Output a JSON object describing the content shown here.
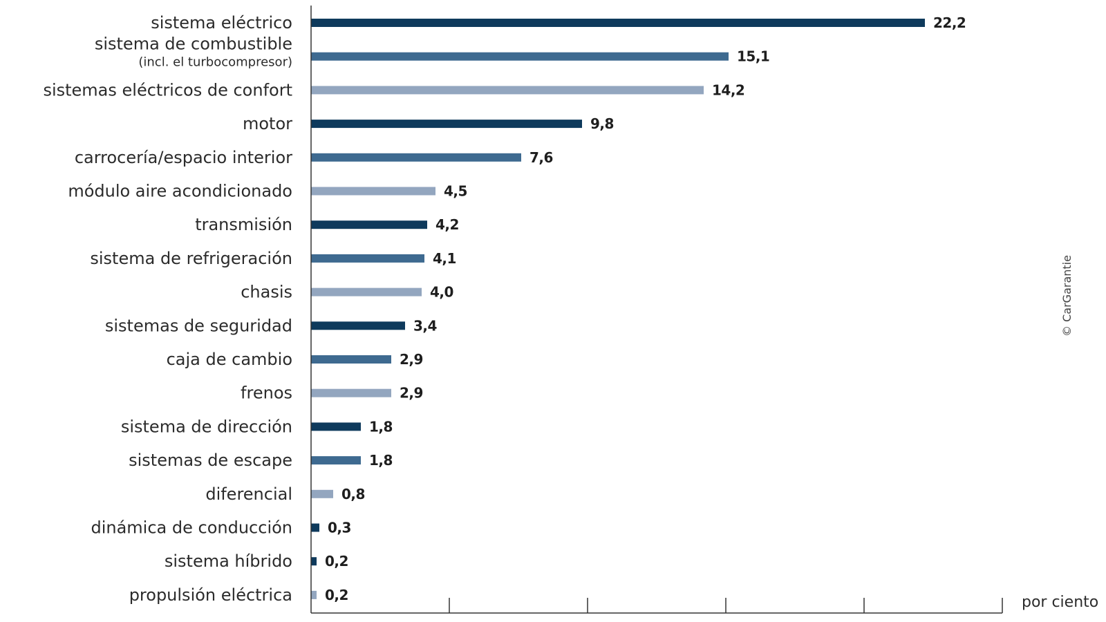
{
  "chart_data": {
    "type": "bar",
    "orientation": "horizontal",
    "categories": [
      "sistema eléctrico",
      "sistema de combustible",
      "sistemas eléctricos de confort",
      "motor",
      "carrocería/espacio interior",
      "módulo aire acondicionado",
      "transmisión",
      "sistema de refrigeración",
      "chasis",
      "sistemas de seguridad",
      "caja de cambio",
      "frenos",
      "sistema de dirección",
      "sistemas de escape",
      "diferencial",
      "dinámica de conducción",
      "sistema híbrido",
      "propulsión eléctrica"
    ],
    "category_notes": [
      "",
      "(incl. el turbocompresor)",
      "",
      "",
      "",
      "",
      "",
      "",
      "",
      "",
      "",
      "",
      "",
      "",
      "",
      "",
      "",
      ""
    ],
    "values": [
      22.2,
      15.1,
      14.2,
      9.8,
      7.6,
      4.5,
      4.2,
      4.1,
      4.0,
      3.4,
      2.9,
      2.9,
      1.8,
      1.8,
      0.8,
      0.3,
      0.2,
      0.2
    ],
    "value_labels": [
      "22,2",
      "15,1",
      "14,2",
      "9,8",
      "7,6",
      "4,5",
      "4,2",
      "4,1",
      "4,0",
      "3,4",
      "2,9",
      "2,9",
      "1,8",
      "1,8",
      "0,8",
      "0,3",
      "0,2",
      "0,2"
    ],
    "bar_colors": [
      "#0e3a5c",
      "#3e6a90",
      "#93a6bf",
      "#0e3a5c",
      "#3e6a90",
      "#93a6bf",
      "#0e3a5c",
      "#3e6a90",
      "#93a6bf",
      "#0e3a5c",
      "#3e6a90",
      "#93a6bf",
      "#0e3a5c",
      "#3e6a90",
      "#93a6bf",
      "#0e3a5c",
      "#0e3a5c",
      "#93a6bf"
    ],
    "xlim": [
      0,
      25
    ],
    "x_ticks": [
      0,
      5,
      10,
      15,
      20,
      25
    ],
    "x_tick_labels_shown": false,
    "xlabel": "por ciento",
    "ylabel": "",
    "title": "",
    "grid": false,
    "legend": "none",
    "credit": "© CarGarantie"
  },
  "colors": {
    "axis": "#333333",
    "text": "#2b2b2b"
  }
}
